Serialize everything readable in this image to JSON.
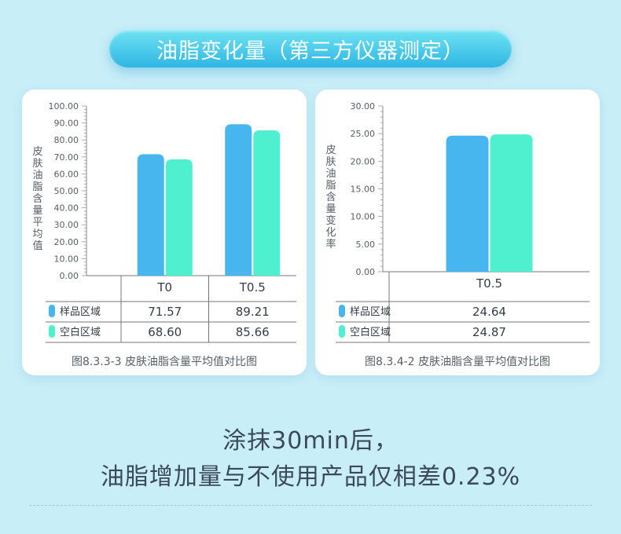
{
  "header": {
    "title": "油脂变化量（第三方仪器测定）"
  },
  "colors": {
    "sample": "#47b6ee",
    "blank": "#4ef0cf",
    "title_top": "#6fe3f3",
    "title_bottom": "#2fb6e3"
  },
  "chart_data": [
    {
      "type": "bar",
      "title": "图8.3.3-3 皮肤油脂含量平均值对比图",
      "ylabel": "皮肤油脂含量平均值",
      "ylim": [
        0,
        100
      ],
      "yticks": [
        "100.00",
        "90.00",
        "80.00",
        "70.00",
        "60.00",
        "50.00",
        "40.00",
        "30.00",
        "20.00",
        "10.00",
        "0.00"
      ],
      "categories": [
        "T0",
        "T0.5"
      ],
      "series": [
        {
          "name": "样品区域",
          "values": [
            71.57,
            89.21
          ],
          "labels": [
            "71.57",
            "89.21"
          ]
        },
        {
          "name": "空白区域",
          "values": [
            68.6,
            85.66
          ],
          "labels": [
            "68.60",
            "85.66"
          ]
        }
      ]
    },
    {
      "type": "bar",
      "title": "图8.3.4-2 皮肤油脂含量平均值对比图",
      "ylabel": "皮肤油脂含量变化率",
      "ylim": [
        0,
        30
      ],
      "yticks": [
        "30.00",
        "25.00",
        "20.00",
        "15.00",
        "10.00",
        "5.00",
        "0.00"
      ],
      "categories": [
        "T0.5"
      ],
      "series": [
        {
          "name": "样品区域",
          "values": [
            24.64
          ],
          "labels": [
            "24.64"
          ]
        },
        {
          "name": "空白区域",
          "values": [
            24.87
          ],
          "labels": [
            "24.87"
          ]
        }
      ]
    }
  ],
  "footer": {
    "line1": "涂抹30min后，",
    "line2": "油脂增加量与不使用产品仅相差0.23%"
  }
}
